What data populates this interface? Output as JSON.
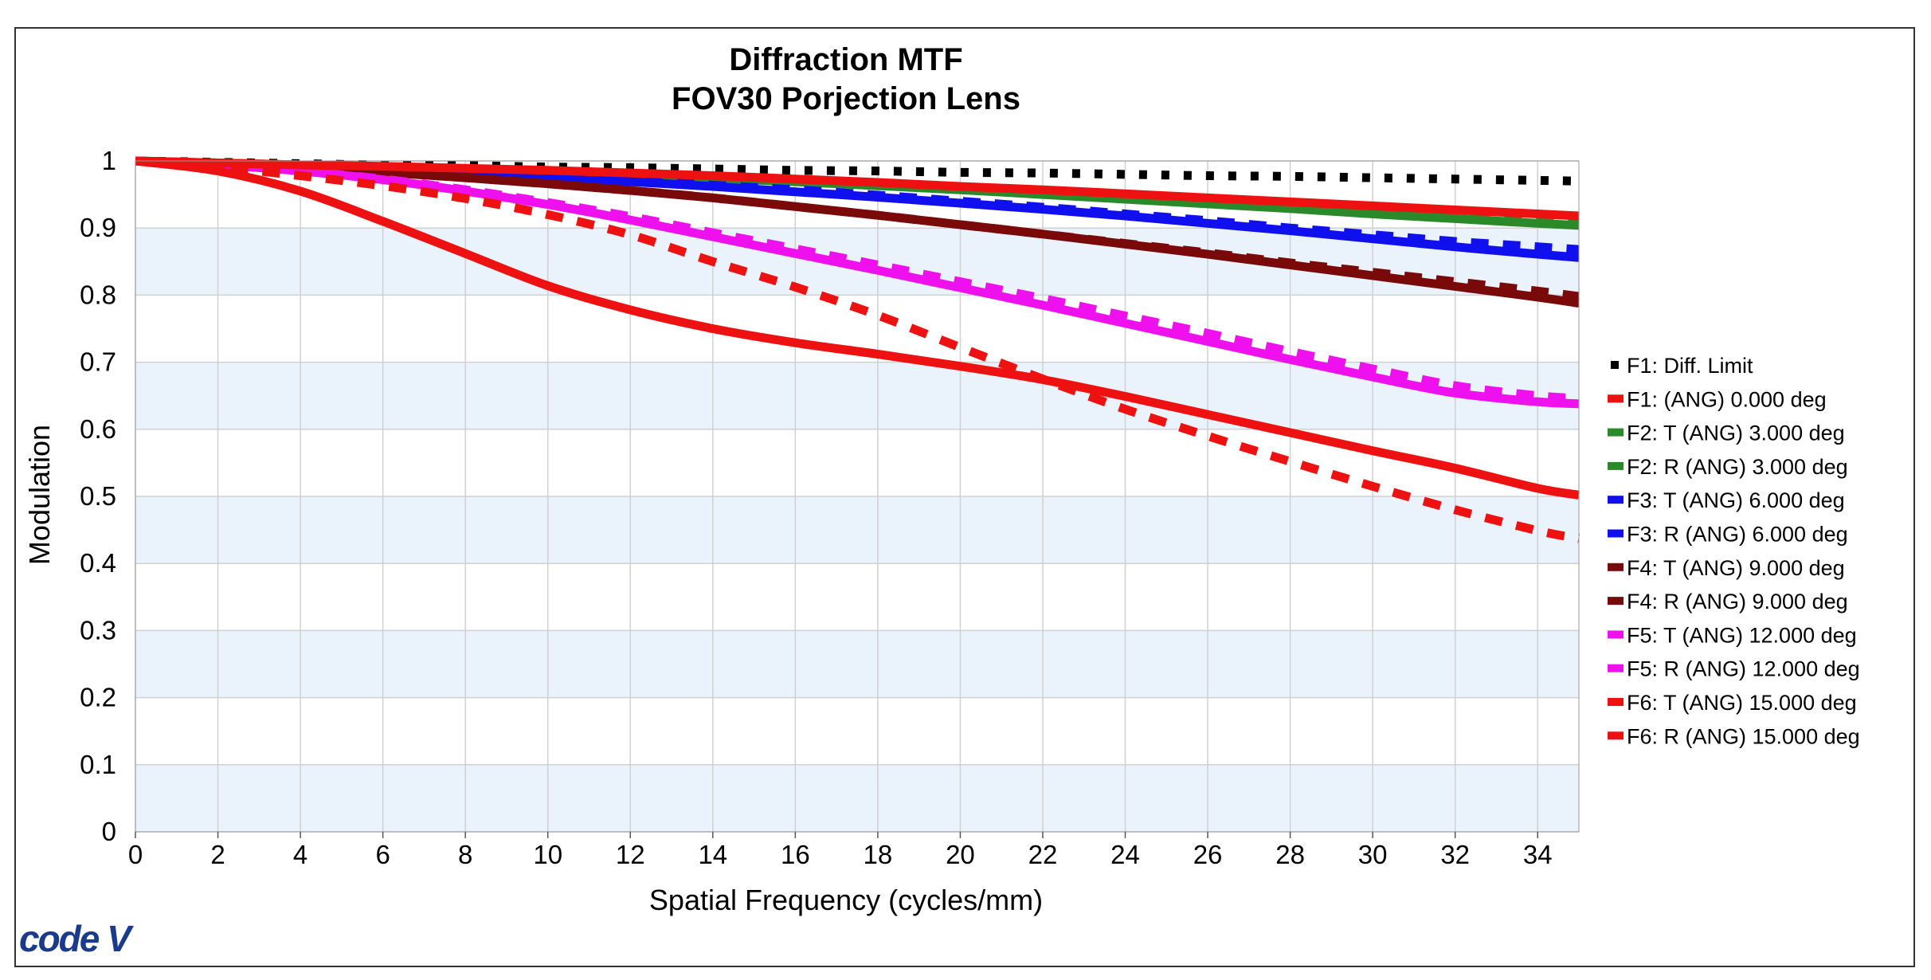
{
  "chart_data": {
    "type": "line",
    "title": [
      "Diffraction MTF",
      "FOV30 Porjection Lens"
    ],
    "xlabel": "Spatial Frequency (cycles/mm)",
    "ylabel": "Modulation",
    "xlim": [
      0,
      35
    ],
    "ylim": [
      0,
      1
    ],
    "xticks": [
      0,
      2,
      4,
      6,
      8,
      10,
      12,
      14,
      16,
      18,
      20,
      22,
      24,
      26,
      28,
      30,
      32,
      34
    ],
    "yticks": [
      0,
      0.1,
      0.2,
      0.3,
      0.4,
      0.5,
      0.6,
      0.7,
      0.8,
      0.9,
      1
    ],
    "ytick_labels": [
      "0",
      "0.1",
      "0.2",
      "0.3",
      "0.4",
      "0.5",
      "0.6",
      "0.7",
      "0.8",
      "0.9",
      "1"
    ],
    "grid": true,
    "band_color": "#eaf3fc",
    "legend_position": "right",
    "x": [
      0,
      2,
      4,
      6,
      8,
      10,
      12,
      14,
      16,
      18,
      20,
      22,
      24,
      26,
      28,
      30,
      32,
      34,
      35
    ],
    "series": [
      {
        "name": "F1: Diff. Limit",
        "color": "#000000",
        "style": "dotted",
        "values": [
          1,
          0.998,
          0.996,
          0.994,
          0.993,
          0.991,
          0.99,
          0.988,
          0.986,
          0.985,
          0.983,
          0.982,
          0.98,
          0.978,
          0.977,
          0.975,
          0.973,
          0.971,
          0.97
        ]
      },
      {
        "name": "F1: (ANG) 0.000 deg",
        "color": "#ee1111",
        "style": "solid",
        "values": [
          1,
          0.997,
          0.994,
          0.992,
          0.989,
          0.986,
          0.982,
          0.978,
          0.973,
          0.968,
          0.962,
          0.957,
          0.951,
          0.945,
          0.939,
          0.933,
          0.927,
          0.921,
          0.918
        ]
      },
      {
        "name": "F2: T (ANG) 3.000 deg",
        "color": "#2a8a2a",
        "style": "solid",
        "values": [
          1,
          0.997,
          0.994,
          0.991,
          0.987,
          0.983,
          0.979,
          0.974,
          0.969,
          0.963,
          0.957,
          0.95,
          0.943,
          0.936,
          0.929,
          0.921,
          0.914,
          0.907,
          0.904
        ]
      },
      {
        "name": "F2: R (ANG) 3.000 deg",
        "color": "#2a8a2a",
        "style": "dashed",
        "values": [
          1,
          0.997,
          0.994,
          0.991,
          0.988,
          0.984,
          0.98,
          0.975,
          0.97,
          0.965,
          0.959,
          0.953,
          0.946,
          0.939,
          0.932,
          0.925,
          0.918,
          0.911,
          0.908
        ]
      },
      {
        "name": "F3: T (ANG) 6.000 deg",
        "color": "#1010ee",
        "style": "solid",
        "values": [
          1,
          0.996,
          0.992,
          0.987,
          0.982,
          0.976,
          0.969,
          0.962,
          0.954,
          0.946,
          0.937,
          0.928,
          0.918,
          0.907,
          0.896,
          0.884,
          0.872,
          0.861,
          0.856
        ]
      },
      {
        "name": "F3: R (ANG) 6.000 deg",
        "color": "#1010ee",
        "style": "dashed",
        "values": [
          1,
          0.996,
          0.992,
          0.988,
          0.983,
          0.977,
          0.971,
          0.964,
          0.957,
          0.949,
          0.94,
          0.931,
          0.921,
          0.911,
          0.9,
          0.89,
          0.88,
          0.872,
          0.868
        ]
      },
      {
        "name": "F4: T (ANG) 9.000 deg",
        "color": "#7a0a0a",
        "style": "solid",
        "values": [
          1,
          0.995,
          0.989,
          0.983,
          0.975,
          0.966,
          0.956,
          0.945,
          0.932,
          0.919,
          0.905,
          0.891,
          0.876,
          0.861,
          0.845,
          0.829,
          0.813,
          0.797,
          0.788
        ]
      },
      {
        "name": "F4: R (ANG) 9.000 deg",
        "color": "#7a0a0a",
        "style": "dashed",
        "values": [
          1,
          0.995,
          0.989,
          0.983,
          0.975,
          0.966,
          0.956,
          0.945,
          0.932,
          0.919,
          0.905,
          0.891,
          0.877,
          0.863,
          0.848,
          0.834,
          0.82,
          0.806,
          0.798
        ]
      },
      {
        "name": "F5: T (ANG) 12.000 deg",
        "color": "#ee11ee",
        "style": "solid",
        "values": [
          1,
          0.994,
          0.985,
          0.972,
          0.955,
          0.935,
          0.912,
          0.887,
          0.862,
          0.837,
          0.811,
          0.785,
          0.758,
          0.731,
          0.704,
          0.678,
          0.654,
          0.641,
          0.638
        ]
      },
      {
        "name": "F5: R (ANG) 12.000 deg",
        "color": "#ee11ee",
        "style": "dashed",
        "values": [
          1,
          0.994,
          0.985,
          0.973,
          0.957,
          0.938,
          0.917,
          0.893,
          0.869,
          0.845,
          0.82,
          0.795,
          0.769,
          0.743,
          0.716,
          0.69,
          0.665,
          0.65,
          0.646
        ]
      },
      {
        "name": "F6: T (ANG) 15.000 deg",
        "color": "#ee1111",
        "style": "solid",
        "values": [
          1,
          0.985,
          0.955,
          0.91,
          0.862,
          0.814,
          0.778,
          0.75,
          0.729,
          0.712,
          0.694,
          0.674,
          0.649,
          0.622,
          0.595,
          0.568,
          0.542,
          0.512,
          0.502
        ]
      },
      {
        "name": "F6: R (ANG) 15.000 deg",
        "color": "#ee1111",
        "style": "dashed",
        "values": [
          1,
          0.991,
          0.978,
          0.963,
          0.944,
          0.92,
          0.89,
          0.85,
          0.812,
          0.77,
          0.722,
          0.675,
          0.63,
          0.59,
          0.552,
          0.515,
          0.48,
          0.449,
          0.437
        ]
      }
    ]
  },
  "logo": {
    "text": "code V"
  }
}
